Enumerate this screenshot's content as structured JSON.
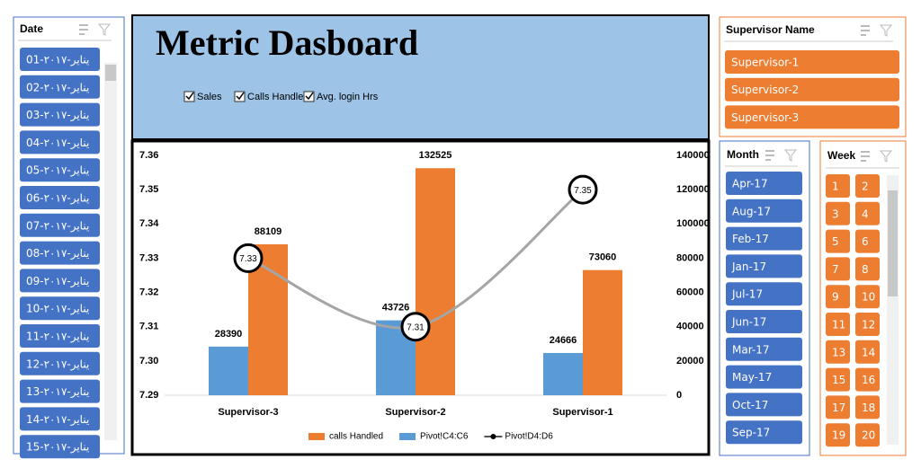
{
  "date_slicer": {
    "header": "Date",
    "items": [
      "01-يناير-٢٠١٧",
      "02-يناير-٢٠١٧",
      "03-يناير-٢٠١٧",
      "04-يناير-٢٠١٧",
      "05-يناير-٢٠١٧",
      "06-يناير-٢٠١٧",
      "07-يناير-٢٠١٧",
      "08-يناير-٢٠١٧",
      "09-يناير-٢٠١٧",
      "10-يناير-٢٠١٧",
      "11-يناير-٢٠١٧",
      "12-يناير-٢٠١٧",
      "13-يناير-٢٠١٧",
      "14-يناير-٢٠١٧",
      "15-يناير-٢٠١٧"
    ]
  },
  "title": "Metric Dasboard",
  "checkboxes": [
    "Sales",
    "Calls Handled",
    "Avg. login Hrs"
  ],
  "supervisor_slicer": {
    "header": "Supervisor Name",
    "items": [
      "Supervisor-1",
      "Supervisor-2",
      "Supervisor-3"
    ]
  },
  "month_slicer": {
    "header": "Month",
    "items": [
      "Apr-17",
      "Aug-17",
      "Feb-17",
      "Jan-17",
      "Jul-17",
      "Jun-17",
      "Mar-17",
      "May-17",
      "Oct-17",
      "Sep-17"
    ]
  },
  "week_slicer": {
    "header": "Week",
    "items": [
      "1",
      "2",
      "3",
      "4",
      "5",
      "6",
      "7",
      "8",
      "9",
      "10",
      "11",
      "12",
      "13",
      "14",
      "15",
      "16",
      "17",
      "18",
      "19",
      "20"
    ]
  },
  "chart_data": {
    "type": "bar-line",
    "categories": [
      "Supervisor-3",
      "Supervisor-2",
      "Supervisor-1"
    ],
    "series": [
      {
        "name": "calls Handled",
        "type": "bar",
        "axis": "y2",
        "color": "#ed7d31",
        "values": [
          88109,
          132525,
          73060
        ]
      },
      {
        "name": "Pivot!C4:C6",
        "type": "bar",
        "axis": "y2",
        "color": "#5b9bd5",
        "values": [
          28390,
          43726,
          24666
        ]
      },
      {
        "name": "Pivot!D4:D6",
        "type": "line",
        "color": "#a5a5a5",
        "values": [
          7.33,
          7.31,
          7.35
        ]
      }
    ],
    "ylim": [
      7.29,
      7.36
    ],
    "yticks": [
      7.29,
      {
        "value": 7.3,
        "label": "7.30"
      },
      7.31,
      7.32,
      7.33,
      7.34,
      7.35,
      7.36
    ],
    "y2lim": [
      0,
      140000
    ],
    "y2ticks": [
      0,
      20000,
      40000,
      60000,
      80000,
      100000,
      120000,
      140000
    ]
  }
}
